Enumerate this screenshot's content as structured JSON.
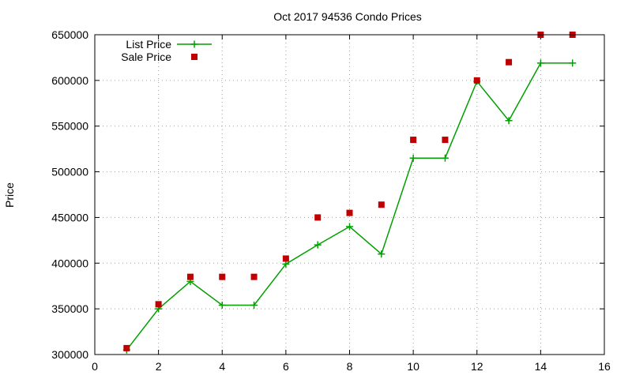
{
  "chart_data": {
    "type": "line",
    "title": "Oct 2017 94536 Condo Prices",
    "xlabel": "",
    "ylabel": "Price",
    "xlim": [
      0,
      16
    ],
    "ylim": [
      300000,
      650000
    ],
    "x_ticks": [
      0,
      2,
      4,
      6,
      8,
      10,
      12,
      14,
      16
    ],
    "y_ticks": [
      300000,
      350000,
      400000,
      450000,
      500000,
      550000,
      600000,
      650000
    ],
    "grid": true,
    "legend_position": "top-left",
    "series": [
      {
        "name": "List Price",
        "style": "linespoints",
        "marker": "plus",
        "color": "#00a000",
        "x": [
          1,
          2,
          3,
          4,
          5,
          6,
          7,
          8,
          9,
          10,
          11,
          12,
          13,
          14,
          15
        ],
        "values": [
          305000,
          350000,
          380000,
          354000,
          354000,
          399000,
          420000,
          440000,
          410000,
          515000,
          515000,
          599000,
          556000,
          619000,
          619000
        ]
      },
      {
        "name": "Sale Price",
        "style": "points",
        "marker": "square",
        "color": "#c00000",
        "x": [
          1,
          2,
          3,
          4,
          5,
          6,
          7,
          8,
          9,
          10,
          11,
          12,
          13,
          14,
          15
        ],
        "values": [
          307000,
          355000,
          385000,
          385000,
          385000,
          405000,
          450000,
          455000,
          464000,
          535000,
          535000,
          600000,
          620000,
          650000,
          650000
        ]
      }
    ]
  }
}
